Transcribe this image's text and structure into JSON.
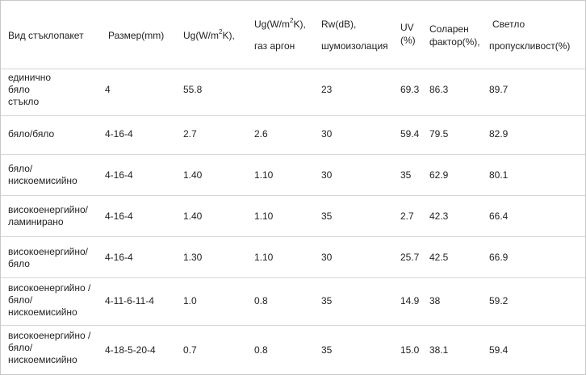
{
  "header": {
    "type": "Вид стъклопакет",
    "size": "Размер(mm)",
    "ug": {
      "a": "Ug(W/m",
      "sup": "2",
      "b": "K),"
    },
    "ug_argon": {
      "a": "Ug(W/m",
      "sup": "2",
      "b": "K),",
      "line2": "газ аргон"
    },
    "rw": {
      "line1": "Rw(dB),",
      "line2": "шумоизолация"
    },
    "uv": {
      "line1": "UV",
      "line2": "(%)"
    },
    "solar": {
      "line1": "Соларен",
      "line2": "фактор(%),"
    },
    "light": {
      "line1": "Светло",
      "line2": "пропускливост(%)"
    }
  },
  "rows": [
    {
      "type": [
        "единично",
        "бяло",
        "стъкло"
      ],
      "size": "4",
      "ug": "55.8",
      "ug_argon": "",
      "rw": "23",
      "uv": "69.3",
      "solar": "86.3",
      "light": "89.7"
    },
    {
      "type": [
        "бяло/бяло"
      ],
      "size": "4-16-4",
      "ug": "2.7",
      "ug_argon": "2.6",
      "rw": "30",
      "uv": "59.4",
      "solar": "79.5",
      "light": "82.9"
    },
    {
      "type": [
        "бяло/",
        "нискоемисийно"
      ],
      "size": "4-16-4",
      "ug": "1.40",
      "ug_argon": "1.10",
      "rw": "30",
      "uv": "35",
      "solar": "62.9",
      "light": "80.1"
    },
    {
      "type": [
        "високоенергийно/",
        "ламинирано"
      ],
      "size": "4-16-4",
      "ug": "1.40",
      "ug_argon": "1.10",
      "rw": "35",
      "uv": "2.7",
      "solar": "42.3",
      "light": "66.4"
    },
    {
      "type": [
        "високоенергийно/",
        "бяло"
      ],
      "size": "4-16-4",
      "ug": "1.30",
      "ug_argon": "1.10",
      "rw": "30",
      "uv": "25.7",
      "solar": "42.5",
      "light": "66.9"
    },
    {
      "type": [
        "високоенергийно /",
        "бяло/",
        "нискоемисийно"
      ],
      "size": "4-11-6-11-4",
      "ug": "1.0",
      "ug_argon": "0.8",
      "rw": "35",
      "uv": "14.9",
      "solar": "38",
      "light": "59.2"
    },
    {
      "type": [
        "високоенергийно /",
        "бяло/",
        "нискоемисийно"
      ],
      "size": "4-18-5-20-4",
      "ug": "0.7",
      "ug_argon": "0.8",
      "rw": "35",
      "uv": "15.0",
      "solar": "38.1",
      "light": "59.4"
    }
  ]
}
